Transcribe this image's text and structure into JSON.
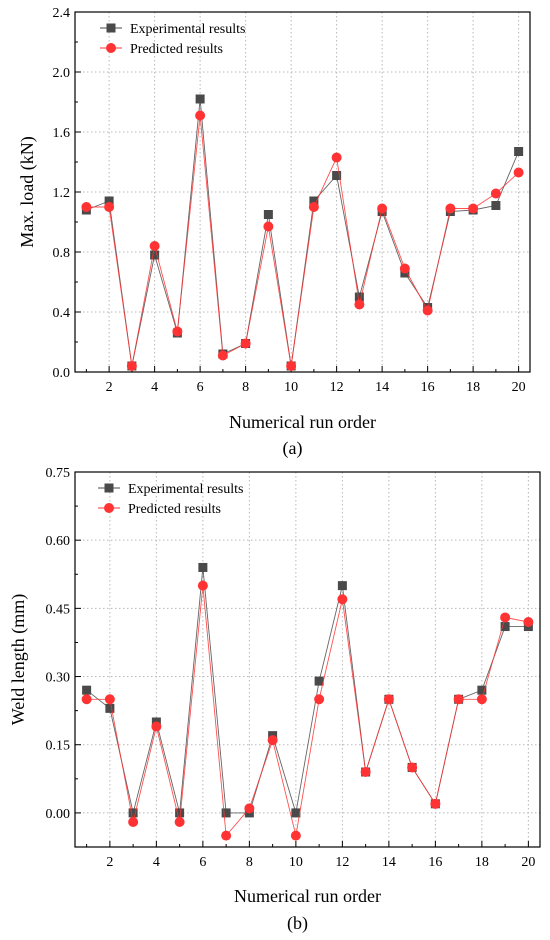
{
  "colors": {
    "experimental": "#4a4a4a",
    "predicted": "#ff3333",
    "grid": "#b8b8b8"
  },
  "chart_data": [
    {
      "type": "line",
      "panel_label": "(a)",
      "xlabel": "Numerical run order",
      "ylabel": "Max. load (kN)",
      "x": [
        1,
        2,
        3,
        4,
        5,
        6,
        7,
        8,
        9,
        10,
        11,
        12,
        13,
        14,
        15,
        16,
        17,
        18,
        19,
        20
      ],
      "xticks": [
        2,
        4,
        6,
        8,
        10,
        12,
        14,
        16,
        18,
        20
      ],
      "xlim": [
        0.5,
        20.5
      ],
      "ylim": [
        0,
        2.4
      ],
      "yticks": [
        0.0,
        0.4,
        0.8,
        1.2,
        1.6,
        2.0,
        2.4
      ],
      "ytick_labels": [
        "0.0",
        "0.4",
        "0.8",
        "1.2",
        "1.6",
        "2.0",
        "2.4"
      ],
      "grid": true,
      "legend_position": "top-left",
      "series": [
        {
          "name": "Experimental results",
          "marker": "square",
          "values": [
            1.08,
            1.14,
            0.04,
            0.78,
            0.26,
            1.82,
            0.12,
            0.19,
            1.05,
            0.04,
            1.14,
            1.31,
            0.5,
            1.07,
            0.66,
            0.43,
            1.07,
            1.08,
            1.11,
            1.47
          ]
        },
        {
          "name": "Predicted results",
          "marker": "circle",
          "values": [
            1.1,
            1.1,
            0.04,
            0.84,
            0.27,
            1.71,
            0.11,
            0.19,
            0.97,
            0.04,
            1.1,
            1.43,
            0.45,
            1.09,
            0.69,
            0.41,
            1.09,
            1.09,
            1.19,
            1.33
          ]
        }
      ]
    },
    {
      "type": "line",
      "panel_label": "(b)",
      "xlabel": "Numerical run order",
      "ylabel": "Weld length (mm)",
      "x": [
        1,
        2,
        3,
        4,
        5,
        6,
        7,
        8,
        9,
        10,
        11,
        12,
        13,
        14,
        15,
        16,
        17,
        18,
        19,
        20
      ],
      "xticks": [
        2,
        4,
        6,
        8,
        10,
        12,
        14,
        16,
        18,
        20
      ],
      "xlim": [
        0.5,
        20.5
      ],
      "ylim": [
        -0.075,
        0.75
      ],
      "yticks": [
        0.0,
        0.15,
        0.3,
        0.45,
        0.6,
        0.75
      ],
      "ytick_labels": [
        "0.00",
        "0.15",
        "0.30",
        "0.45",
        "0.60",
        "0.75"
      ],
      "grid": true,
      "legend_position": "top-left",
      "series": [
        {
          "name": "Experimental results",
          "marker": "square",
          "values": [
            0.27,
            0.23,
            0.0,
            0.2,
            0.0,
            0.54,
            0.0,
            0.0,
            0.17,
            0.0,
            0.29,
            0.5,
            0.09,
            0.25,
            0.1,
            0.02,
            0.25,
            0.27,
            0.41,
            0.41
          ]
        },
        {
          "name": "Predicted results",
          "marker": "circle",
          "values": [
            0.25,
            0.25,
            -0.02,
            0.19,
            -0.02,
            0.5,
            -0.05,
            0.01,
            0.16,
            -0.05,
            0.25,
            0.47,
            0.09,
            0.25,
            0.1,
            0.02,
            0.25,
            0.25,
            0.43,
            0.42
          ]
        }
      ]
    }
  ]
}
